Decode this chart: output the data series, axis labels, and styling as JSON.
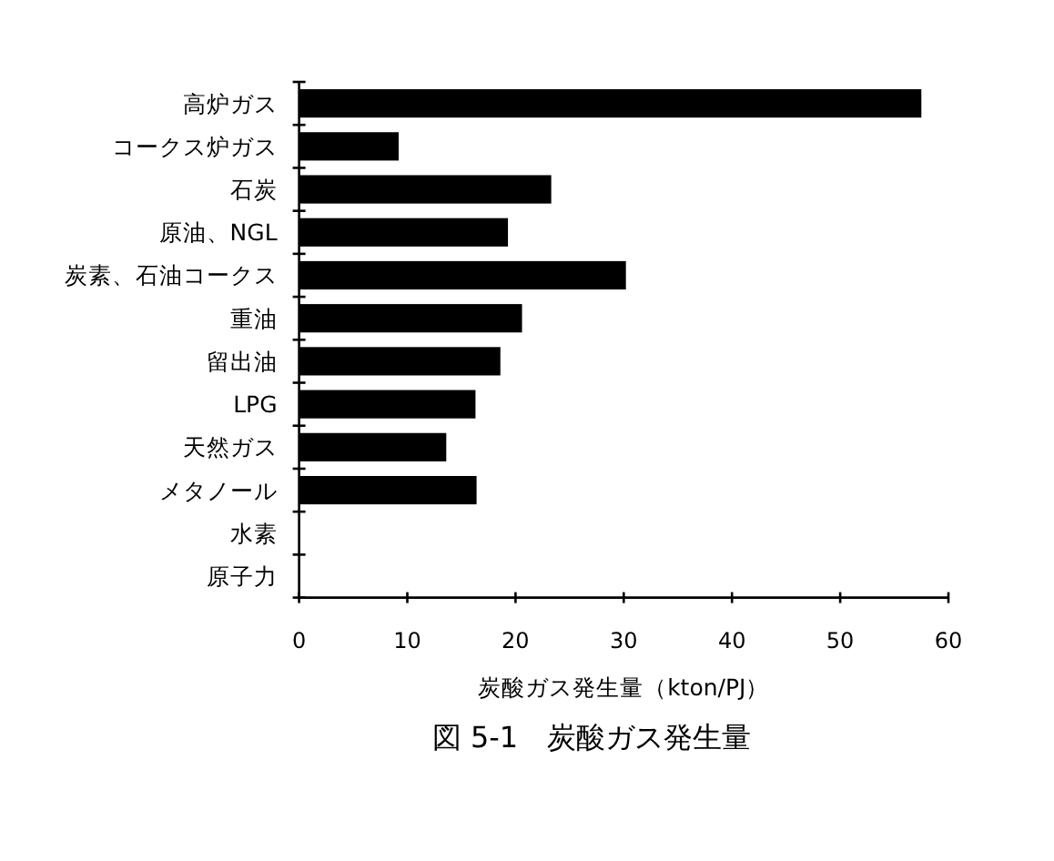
{
  "chart_data": {
    "type": "bar",
    "orientation": "horizontal",
    "title": "図 5-1　炭酸ガス発生量",
    "xlabel": "炭酸ガス発生量（kton/PJ）",
    "categories": [
      "高炉ガス",
      "コークス炉ガス",
      "石炭",
      "原油、NGL",
      "炭素、石油コークス",
      "重油",
      "留出油",
      "LPG",
      "天然ガス",
      "メタノール",
      "水素",
      "原子力"
    ],
    "values": [
      57.5,
      9.2,
      23.3,
      19.3,
      30.2,
      20.6,
      18.6,
      16.3,
      13.6,
      16.4,
      0,
      0
    ],
    "color": "#000000",
    "xlim": [
      0,
      60
    ],
    "xticks": [
      0,
      10,
      20,
      30,
      40,
      50,
      60
    ]
  }
}
